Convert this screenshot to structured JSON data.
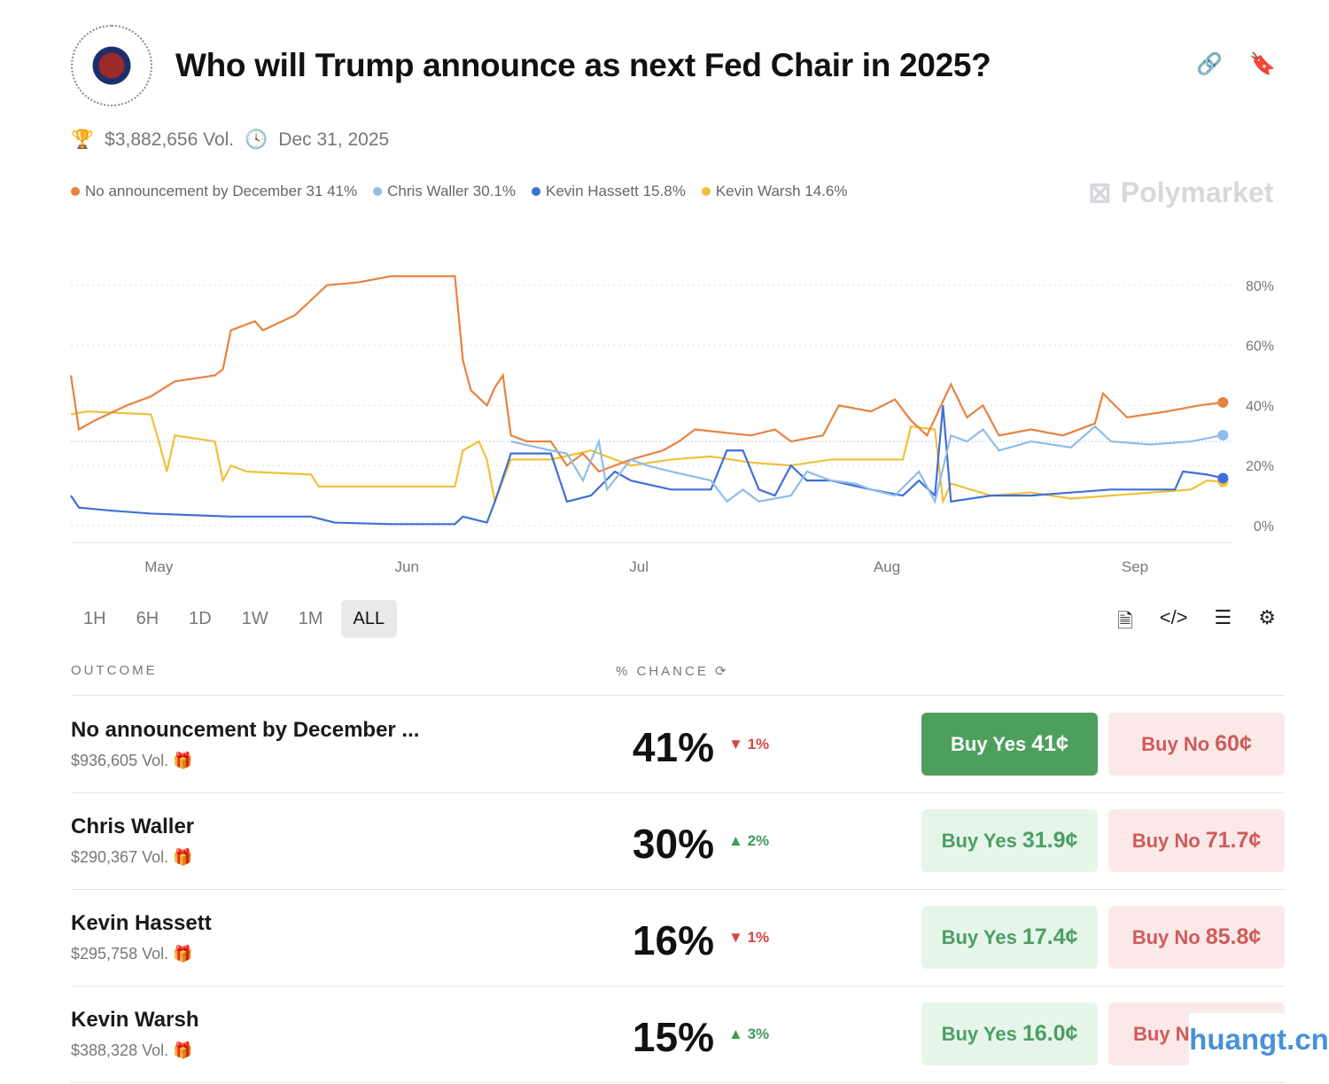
{
  "header": {
    "title": "Who will Trump announce as next Fed Chair in 2025?",
    "logo_text": "Board of Governors of the Federal Reserve System"
  },
  "meta": {
    "volume": "$3,882,656 Vol.",
    "end_date": "Dec 31, 2025"
  },
  "brand": "Polymarket",
  "chart_data": {
    "type": "line",
    "x_unit": "days since Apr 20, 2025",
    "ylim": [
      0,
      85
    ],
    "yticks": [
      "0%",
      "20%",
      "40%",
      "60%",
      "80%"
    ],
    "ytick_values": [
      0,
      20,
      40,
      60,
      80
    ],
    "xticks": [
      {
        "label": "May",
        "day": 11
      },
      {
        "label": "Jun",
        "day": 42
      },
      {
        "label": "Jul",
        "day": 71
      },
      {
        "label": "Aug",
        "day": 102
      },
      {
        "label": "Sep",
        "day": 133
      }
    ],
    "series": [
      {
        "name": "No announcement by December 31",
        "legend": "No announcement by December 31 41%",
        "color": "#e8823f",
        "points": [
          [
            0,
            50
          ],
          [
            1,
            32
          ],
          [
            3,
            35
          ],
          [
            7,
            40
          ],
          [
            10,
            43
          ],
          [
            13,
            48
          ],
          [
            18,
            50
          ],
          [
            19,
            52
          ],
          [
            20,
            65
          ],
          [
            23,
            68
          ],
          [
            24,
            65
          ],
          [
            28,
            70
          ],
          [
            30,
            75
          ],
          [
            32,
            80
          ],
          [
            36,
            81
          ],
          [
            40,
            83
          ],
          [
            48,
            83
          ],
          [
            49,
            55
          ],
          [
            50,
            45
          ],
          [
            52,
            40
          ],
          [
            53,
            46
          ],
          [
            54,
            50
          ],
          [
            55,
            30
          ],
          [
            57,
            28
          ],
          [
            60,
            28
          ],
          [
            62,
            20
          ],
          [
            64,
            24
          ],
          [
            66,
            18
          ],
          [
            70,
            22
          ],
          [
            74,
            25
          ],
          [
            76,
            28
          ],
          [
            78,
            32
          ],
          [
            85,
            30
          ],
          [
            88,
            32
          ],
          [
            90,
            28
          ],
          [
            94,
            30
          ],
          [
            96,
            40
          ],
          [
            100,
            38
          ],
          [
            103,
            42
          ],
          [
            105,
            35
          ],
          [
            107,
            30
          ],
          [
            110,
            47
          ],
          [
            112,
            36
          ],
          [
            114,
            40
          ],
          [
            116,
            30
          ],
          [
            120,
            32
          ],
          [
            124,
            30
          ],
          [
            128,
            34
          ],
          [
            129,
            44
          ],
          [
            132,
            36
          ],
          [
            137,
            38
          ],
          [
            141,
            40
          ],
          [
            144,
            41
          ]
        ]
      },
      {
        "name": "Chris Waller",
        "legend": "Chris Waller 30.1%",
        "color": "#8fbde8",
        "points": [
          [
            55,
            28
          ],
          [
            60,
            25
          ],
          [
            62,
            24
          ],
          [
            64,
            15
          ],
          [
            66,
            28
          ],
          [
            67,
            12
          ],
          [
            70,
            22
          ],
          [
            72,
            20
          ],
          [
            75,
            18
          ],
          [
            80,
            15
          ],
          [
            82,
            8
          ],
          [
            84,
            12
          ],
          [
            86,
            8
          ],
          [
            90,
            10
          ],
          [
            92,
            18
          ],
          [
            95,
            15
          ],
          [
            98,
            14
          ],
          [
            100,
            12
          ],
          [
            103,
            10
          ],
          [
            106,
            18
          ],
          [
            108,
            8
          ],
          [
            110,
            30
          ],
          [
            112,
            28
          ],
          [
            114,
            32
          ],
          [
            116,
            25
          ],
          [
            120,
            28
          ],
          [
            125,
            26
          ],
          [
            128,
            33
          ],
          [
            130,
            28
          ],
          [
            135,
            27
          ],
          [
            140,
            28
          ],
          [
            144,
            30.1
          ]
        ]
      },
      {
        "name": "Kevin Hassett",
        "legend": "Kevin Hassett 15.8%",
        "color": "#3f6fd8",
        "points": [
          [
            0,
            10
          ],
          [
            1,
            6
          ],
          [
            5,
            5
          ],
          [
            10,
            4
          ],
          [
            20,
            3
          ],
          [
            30,
            3
          ],
          [
            33,
            1
          ],
          [
            40,
            0.5
          ],
          [
            48,
            0.5
          ],
          [
            49,
            3
          ],
          [
            52,
            1
          ],
          [
            53,
            8
          ],
          [
            55,
            24
          ],
          [
            60,
            24
          ],
          [
            62,
            8
          ],
          [
            65,
            10
          ],
          [
            68,
            18
          ],
          [
            70,
            15
          ],
          [
            75,
            12
          ],
          [
            80,
            12
          ],
          [
            82,
            25
          ],
          [
            84,
            25
          ],
          [
            86,
            12
          ],
          [
            88,
            10
          ],
          [
            90,
            20
          ],
          [
            92,
            15
          ],
          [
            95,
            15
          ],
          [
            100,
            12
          ],
          [
            104,
            10
          ],
          [
            106,
            15
          ],
          [
            108,
            10
          ],
          [
            109,
            40
          ],
          [
            110,
            8
          ],
          [
            115,
            10
          ],
          [
            120,
            10
          ],
          [
            125,
            11
          ],
          [
            130,
            12
          ],
          [
            138,
            12
          ],
          [
            139,
            18
          ],
          [
            142,
            17
          ],
          [
            144,
            15.8
          ]
        ]
      },
      {
        "name": "Kevin Warsh",
        "legend": "Kevin Warsh 14.6%",
        "color": "#f0c03a",
        "points": [
          [
            0,
            37
          ],
          [
            2,
            38
          ],
          [
            10,
            37
          ],
          [
            11,
            28
          ],
          [
            12,
            18
          ],
          [
            13,
            30
          ],
          [
            18,
            28
          ],
          [
            19,
            15
          ],
          [
            20,
            20
          ],
          [
            22,
            18
          ],
          [
            30,
            17
          ],
          [
            31,
            13
          ],
          [
            40,
            13
          ],
          [
            48,
            13
          ],
          [
            49,
            25
          ],
          [
            51,
            28
          ],
          [
            52,
            22
          ],
          [
            53,
            8
          ],
          [
            55,
            22
          ],
          [
            60,
            22
          ],
          [
            65,
            25
          ],
          [
            70,
            20
          ],
          [
            75,
            22
          ],
          [
            80,
            23
          ],
          [
            85,
            21
          ],
          [
            90,
            20
          ],
          [
            95,
            22
          ],
          [
            100,
            22
          ],
          [
            104,
            22
          ],
          [
            105,
            33
          ],
          [
            108,
            32
          ],
          [
            109,
            8
          ],
          [
            110,
            14
          ],
          [
            115,
            10
          ],
          [
            120,
            11
          ],
          [
            125,
            9
          ],
          [
            130,
            10
          ],
          [
            140,
            12
          ],
          [
            142,
            15
          ],
          [
            144,
            14.6
          ]
        ]
      }
    ]
  },
  "ranges": [
    "1H",
    "6H",
    "1D",
    "1W",
    "1M",
    "ALL"
  ],
  "table": {
    "col_outcome": "OUTCOME",
    "col_chance": "% CHANCE",
    "rows": [
      {
        "name": "No announcement by December ...",
        "vol": "$936,605 Vol.",
        "pct": "41%",
        "change": "1%",
        "dir": "down",
        "yes_label": "Buy Yes",
        "yes_price": "41¢",
        "no_label": "Buy No",
        "no_price": "60¢"
      },
      {
        "name": "Chris Waller",
        "vol": "$290,367 Vol.",
        "pct": "30%",
        "change": "2%",
        "dir": "up",
        "yes_label": "Buy Yes",
        "yes_price": "31.9¢",
        "no_label": "Buy No",
        "no_price": "71.7¢"
      },
      {
        "name": "Kevin Hassett",
        "vol": "$295,758 Vol.",
        "pct": "16%",
        "change": "1%",
        "dir": "down",
        "yes_label": "Buy Yes",
        "yes_price": "17.4¢",
        "no_label": "Buy No",
        "no_price": "85.8¢"
      },
      {
        "name": "Kevin Warsh",
        "vol": "$388,328 Vol.",
        "pct": "15%",
        "change": "3%",
        "dir": "up",
        "yes_label": "Buy Yes",
        "yes_price": "16.0¢",
        "no_label": "Buy N",
        "no_price": ""
      }
    ]
  },
  "watermark": "huangt.cn"
}
